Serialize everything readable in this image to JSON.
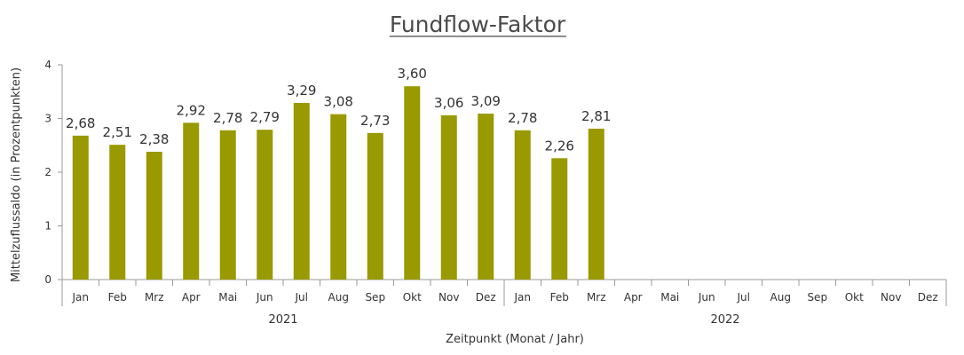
{
  "chart_data": {
    "type": "bar",
    "title": "Fundflow-Faktor",
    "xlabel": "Zeitpunkt (Monat / Jahr)",
    "ylabel": "Mittelzuflussaldo (in Prozentpunkten)",
    "ylim": [
      0,
      4
    ],
    "yticks": [
      "0",
      "1",
      "2",
      "3",
      "4"
    ],
    "grid": false,
    "categories": [
      "Jan",
      "Feb",
      "Mrz",
      "Apr",
      "Mai",
      "Jun",
      "Jul",
      "Aug",
      "Sep",
      "Okt",
      "Nov",
      "Dez",
      "Jan",
      "Feb",
      "Mrz",
      "Apr",
      "Mai",
      "Jun",
      "Jul",
      "Aug",
      "Sep",
      "Okt",
      "Nov",
      "Dez"
    ],
    "year_groups": [
      {
        "label": "2021",
        "start": 0,
        "count": 12
      },
      {
        "label": "2022",
        "start": 12,
        "count": 12
      }
    ],
    "series": [
      {
        "color": "#999900",
        "values": [
          2.68,
          2.51,
          2.38,
          2.92,
          2.78,
          2.79,
          3.29,
          3.08,
          2.73,
          3.6,
          3.06,
          3.09,
          2.78,
          2.26,
          2.81,
          null,
          null,
          null,
          null,
          null,
          null,
          null,
          null,
          null
        ],
        "labels": [
          "2,68",
          "2,51",
          "2,38",
          "2,92",
          "2,78",
          "2,79",
          "3,29",
          "3,08",
          "2,73",
          "3,60",
          "3,06",
          "3,09",
          "2,78",
          "2,26",
          "2,81",
          "",
          "",
          "",
          "",
          "",
          "",
          "",
          "",
          ""
        ]
      }
    ]
  }
}
